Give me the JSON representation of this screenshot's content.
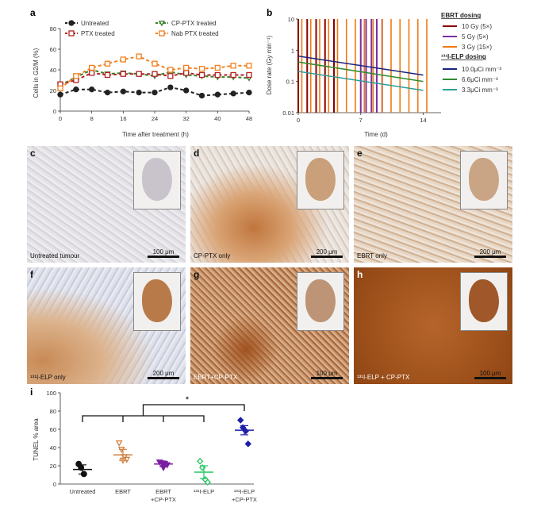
{
  "charts": {
    "a": {
      "letter": "a",
      "chart_data": {
        "type": "line",
        "xlabel": "Time after treatment (h)",
        "ylabel": "Cells in G2/M (%)",
        "xlim": [
          0,
          48
        ],
        "ylim": [
          0,
          80
        ],
        "xticks": [
          0,
          8,
          16,
          24,
          32,
          40,
          48
        ],
        "yticks": [
          0,
          20,
          40,
          60,
          80
        ],
        "grid": false,
        "legend": "top",
        "x": [
          0,
          4,
          8,
          12,
          16,
          20,
          24,
          28,
          32,
          36,
          40,
          44,
          48
        ],
        "series": [
          {
            "name": "Untreated",
            "color": "#222222",
            "marker": "circle",
            "values": [
              16,
              21,
              21,
              18,
              19,
              18,
              18,
              23,
              20,
              15,
              16,
              17,
              18
            ]
          },
          {
            "name": "CP-PTX treated",
            "color": "#3a7d2c",
            "marker": "triangle-down",
            "values": [
              25,
              33,
              40,
              36,
              37,
              36,
              34,
              38,
              35,
              34,
              33,
              33,
              32
            ]
          },
          {
            "name": "PTX treated",
            "color": "#b22222",
            "marker": "square",
            "values": [
              26,
              30,
              37,
              35,
              36,
              36,
              36,
              34,
              37,
              35,
              35,
              35,
              35
            ]
          },
          {
            "name": "Nab PTX treated",
            "color": "#f08020",
            "marker": "square",
            "values": [
              22,
              34,
              42,
              46,
              50,
              53,
              46,
              40,
              42,
              41,
              42,
              44,
              44
            ]
          }
        ]
      }
    },
    "b": {
      "letter": "b",
      "chart_data": {
        "type": "line",
        "xlabel": "Time (d)",
        "ylabel": "Dose rate (Gy min⁻¹)",
        "yscale": "log",
        "xlim": [
          0,
          16
        ],
        "ylim": [
          0.01,
          10
        ],
        "xticks": [
          0,
          7,
          14
        ],
        "yticks": [
          {
            "v": 0.01,
            "label": "0.01"
          },
          {
            "v": 0.1,
            "label": "0.1"
          },
          {
            "v": 1,
            "label": "1"
          },
          {
            "v": 10,
            "label": "10"
          }
        ],
        "legend": "right",
        "ebrt_title": "EBRT dosing",
        "elp_title": "¹³¹I-ELP dosing",
        "pulses": [
          {
            "name": "10 Gy (5×)",
            "color": "#8b0000",
            "days": [
              0,
              1,
              2,
              3,
              4
            ]
          },
          {
            "name": "5 Gy (5×)",
            "color": "#7b2fa0",
            "days": [
              7,
              7.6,
              8.2,
              8.8,
              9.4
            ]
          },
          {
            "name": "3 Gy (15×)",
            "color": "#f07a10",
            "days": [
              0.4,
              1.4,
              2.4,
              3.4,
              4.4,
              5.4,
              6.4,
              7.4,
              8.4,
              9.4,
              10.4,
              11.4,
              12.4,
              13.4,
              14.4
            ]
          }
        ],
        "decays": [
          {
            "name": "10.0μCi mm⁻³",
            "color": "#1a237e",
            "start": 0.65,
            "end": 0.16
          },
          {
            "name": "6.6μCi mm⁻³",
            "color": "#2e8b2e",
            "start": 0.42,
            "end": 0.1
          },
          {
            "name": "3.3μCi mm⁻³",
            "color": "#2a9d9a",
            "start": 0.21,
            "end": 0.052
          }
        ]
      }
    },
    "i": {
      "letter": "i",
      "chart_data": {
        "type": "scatter",
        "ylabel": "TUNEL % area",
        "ylim": [
          0,
          100
        ],
        "yticks": [
          0,
          20,
          40,
          60,
          80,
          100
        ],
        "categories": [
          "Untreated",
          "EBRT",
          "EBRT\n+CP-PTX",
          "¹³¹I-ELP",
          "¹³¹I-ELP\n+CP-PTX"
        ],
        "significance": "*",
        "groups": [
          {
            "color": "#111111",
            "marker": "circle",
            "mean": 16,
            "sem": 5,
            "points": [
              22,
              18,
              11
            ]
          },
          {
            "color": "#d08040",
            "marker": "triangle-down",
            "mean": 32,
            "sem": 6,
            "points": [
              45,
              38,
              30,
              27,
              26
            ]
          },
          {
            "color": "#7b1fa2",
            "marker": "triangle-down",
            "mean": 22,
            "sem": 3,
            "points": [
              24,
              23,
              22,
              21,
              18
            ]
          },
          {
            "color": "#22c55e",
            "marker": "diamond",
            "mean": 13,
            "sem": 7,
            "points": [
              25,
              18,
              5,
              2
            ]
          },
          {
            "color": "#1e1ea8",
            "marker": "diamond",
            "mean": 59,
            "sem": 5,
            "points": [
              70,
              62,
              58,
              44
            ]
          }
        ]
      }
    }
  },
  "images": [
    {
      "letter": "c",
      "label": "Untreated tumour",
      "scale": "100 μm",
      "tone": "light"
    },
    {
      "letter": "d",
      "label": "CP-PTX only",
      "scale": "200 μm",
      "tone": "mixed"
    },
    {
      "letter": "e",
      "label": "EBRT only",
      "scale": "200 μm",
      "tone": "light-brown"
    },
    {
      "letter": "f",
      "label": "¹³¹I-ELP only",
      "scale": "200 μm",
      "tone": "mixed-left"
    },
    {
      "letter": "g",
      "label": "EBRT+CP-PTX",
      "scale": "100 μm",
      "tone": "brown-dotted"
    },
    {
      "letter": "h",
      "label": "¹³¹I-ELP + CP-PTX",
      "scale": "100 μm",
      "tone": "dark-brown"
    }
  ]
}
